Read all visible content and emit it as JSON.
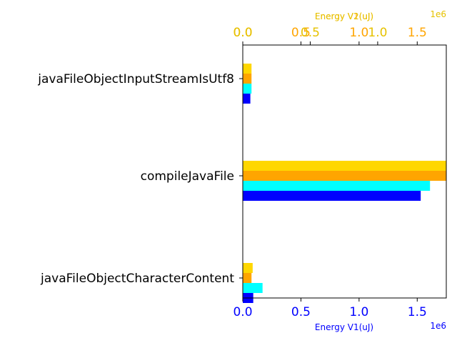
{
  "chart_data": {
    "type": "bar",
    "orientation": "horizontal",
    "categories": [
      "javaFileObjectCharacterContent",
      "compileJavaFile",
      "javaFileObjectInputStreamIsUtf8"
    ],
    "series": [
      {
        "name": "Energy V1(uJ)",
        "color": "#0000ff",
        "axis": "bottom",
        "values": [
          90000,
          1530000,
          65000
        ]
      },
      {
        "name": "",
        "color": "#00ffff",
        "axis": "bottom",
        "values": [
          170000,
          1610000,
          75000
        ]
      },
      {
        "name": "",
        "color": "#ffa500",
        "axis": "top-1",
        "values": [
          75000,
          1750000,
          75000
        ]
      },
      {
        "name": "Energy V2(uJ)",
        "color": "#ffd700",
        "axis": "top-2",
        "values": [
          85000,
          1750000,
          75000
        ]
      }
    ],
    "xlim": [
      0,
      1750000
    ],
    "axes": {
      "bottom": {
        "label": "Energy V1(uJ)",
        "color": "#0000ff",
        "offset_text": "1e6",
        "ticks": [
          0,
          500000,
          1000000,
          1500000
        ],
        "tick_labels": [
          "0.0",
          "0.5",
          "1.0",
          "1.5"
        ]
      },
      "top_1": {
        "label": "Energy V1(uJ)",
        "color": "#ffa500",
        "ticks": [
          0,
          500000,
          1000000,
          1500000
        ],
        "tick_labels": [
          "0.0",
          "0.5",
          "1.0",
          "1.5"
        ]
      },
      "top_2": {
        "label": "Energy V2(uJ)",
        "color": "#e6c200",
        "offset_text": "1e6",
        "ticks": [
          0,
          580000,
          1160000
        ],
        "tick_labels": [
          "0.0",
          "0.5",
          "1.0"
        ]
      }
    },
    "grid": false,
    "legend": "none"
  }
}
